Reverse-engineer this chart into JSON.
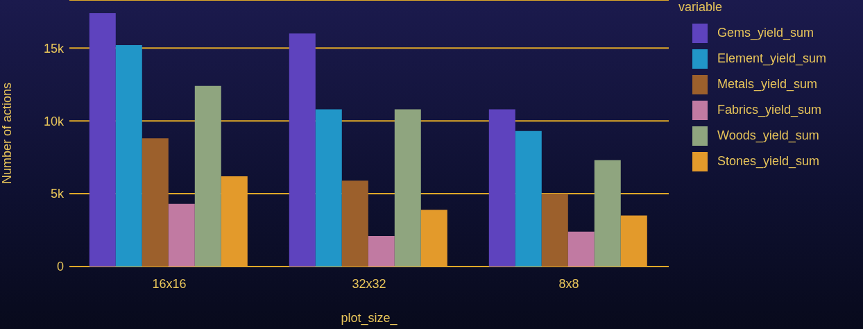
{
  "chart_data": {
    "type": "bar",
    "xlabel": "plot_size_",
    "ylabel": "Number of actions",
    "legend_title": "variable",
    "categories": [
      "16x16",
      "32x32",
      "8x8"
    ],
    "series": [
      {
        "name": "Gems_yield_sum",
        "color": "#5e43be",
        "values": [
          17400,
          16000,
          10800
        ]
      },
      {
        "name": "Element_yield_sum",
        "color": "#2196c8",
        "values": [
          15200,
          10800,
          9300
        ]
      },
      {
        "name": "Metals_yield_sum",
        "color": "#9c602c",
        "values": [
          8800,
          5900,
          5000
        ]
      },
      {
        "name": "Fabrics_yield_sum",
        "color": "#c17aa2",
        "values": [
          4300,
          2100,
          2400
        ]
      },
      {
        "name": "Woods_yield_sum",
        "color": "#8fa57f",
        "values": [
          12400,
          10800,
          7300
        ]
      },
      {
        "name": "Stones_yield_sum",
        "color": "#e39a2b",
        "values": [
          6200,
          3900,
          3500
        ]
      }
    ],
    "ylim": [
      0,
      18300
    ],
    "yticks": [
      0,
      {
        "value": 5000,
        "label": "5k"
      },
      {
        "value": 10000,
        "label": "10k"
      },
      {
        "value": 15000,
        "label": "15k"
      }
    ],
    "grid": "y",
    "legend": "right"
  }
}
